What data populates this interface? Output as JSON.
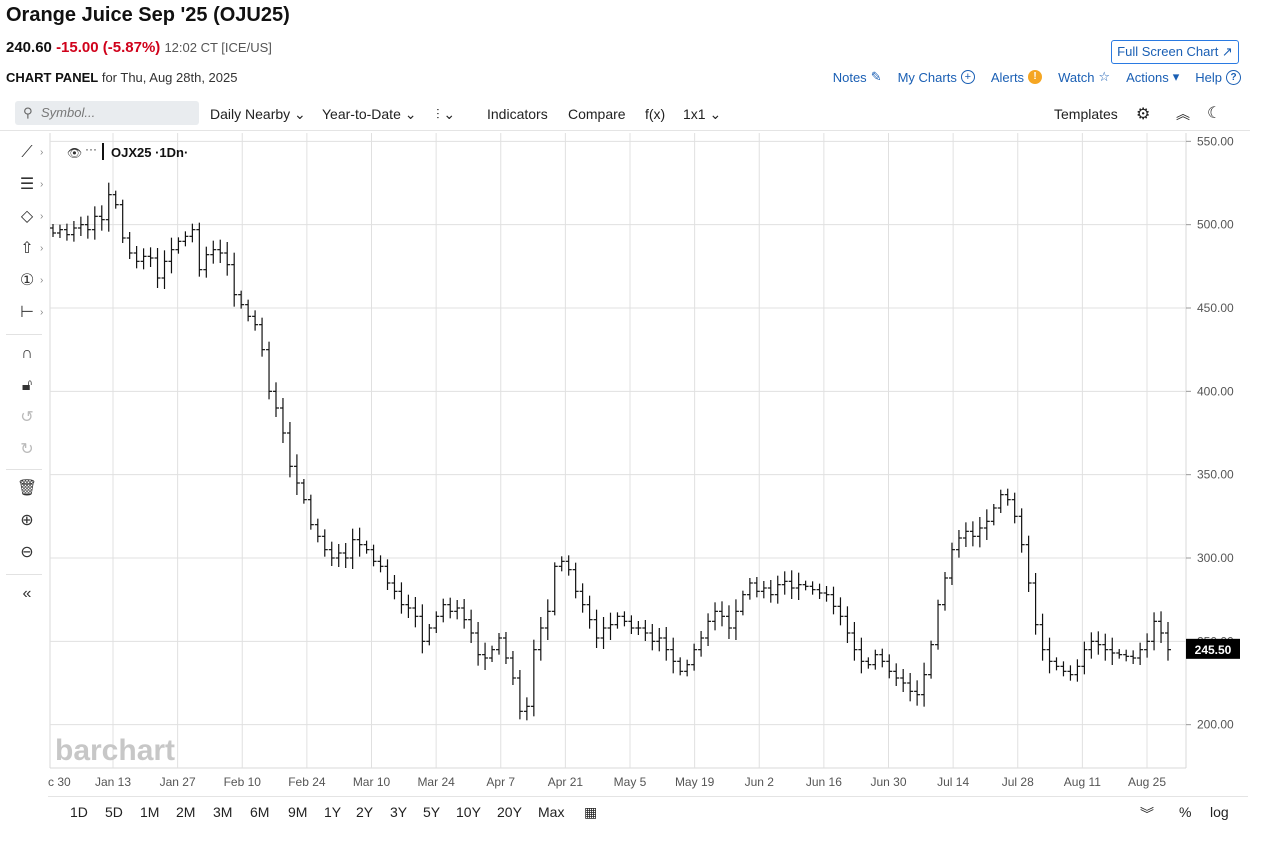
{
  "header": {
    "title": "Orange Juice Sep '25 (OJU25)",
    "last": "240.60",
    "change": "-15.00 (-5.87%)",
    "time": "12:02 CT [ICE/US]",
    "panel_label": "CHART PANEL",
    "panel_date": "for Thu, Aug 28th, 2025",
    "fullscreen_label": "Full Screen Chart ↗"
  },
  "links": {
    "notes": "Notes",
    "mycharts": "My Charts",
    "alerts": "Alerts",
    "watch": "Watch",
    "actions": "Actions",
    "help": "Help"
  },
  "toolbar": {
    "symbol_placeholder": "Symbol...",
    "interval": "Daily Nearby",
    "range": "Year-to-Date",
    "bar_type_icon": "bar-type-icon",
    "indicators": "Indicators",
    "compare": "Compare",
    "fx": "f(x)",
    "layout": "1x1",
    "templates": "Templates"
  },
  "side_tools": [
    "line-tool-icon",
    "fib-tool-icon",
    "shape-tool-icon",
    "arrow-tool-icon",
    "annotation-tool-icon",
    "measure-tool-icon",
    "magnet-icon",
    "lock-icon",
    "undo-icon",
    "redo-icon",
    "trash-icon",
    "zoom-in-icon",
    "zoom-out-icon",
    "collapse-icon"
  ],
  "ranges": [
    "1D",
    "5D",
    "1M",
    "2M",
    "3M",
    "6M",
    "9M",
    "1Y",
    "2Y",
    "3Y",
    "5Y",
    "10Y",
    "20Y",
    "Max"
  ],
  "bottom_right": {
    "percent": "%",
    "log": "log"
  },
  "watermark": "barchart",
  "colors": {
    "change": "#d0021b",
    "link": "#1a5fb4",
    "grid": "#e0e0e0",
    "bars": "#111111",
    "price_tag": "#000000"
  },
  "chart_data": {
    "type": "ohlc-bar",
    "legend": "OJX25 ·1Dn·",
    "y_ticks": [
      "550.00",
      "500.00",
      "450.00",
      "400.00",
      "350.00",
      "300.00",
      "250.00",
      "200.00"
    ],
    "ylim": [
      174,
      555
    ],
    "current_price_label": "245.50",
    "current_price": 245.5,
    "x_ticks": [
      "c 30",
      "Jan 13",
      "Jan 27",
      "Feb 10",
      "Feb 24",
      "Mar 10",
      "Mar 24",
      "Apr 7",
      "Apr 21",
      "May 5",
      "May 19",
      "Jun 2",
      "Jun 16",
      "Jun 30",
      "Jul 14",
      "Jul 28",
      "Aug 11",
      "Aug 25"
    ],
    "closes": [
      495,
      497,
      494,
      498,
      500,
      497,
      505,
      503,
      518,
      512,
      492,
      483,
      478,
      481,
      480,
      468,
      478,
      485,
      490,
      493,
      497,
      473,
      482,
      485,
      483,
      476,
      458,
      452,
      445,
      440,
      425,
      400,
      390,
      375,
      355,
      345,
      335,
      320,
      313,
      305,
      300,
      303,
      300,
      311,
      308,
      305,
      298,
      295,
      285,
      280,
      272,
      270,
      265,
      250,
      258,
      265,
      272,
      268,
      270,
      263,
      255,
      242,
      240,
      245,
      252,
      240,
      228,
      208,
      211,
      245,
      258,
      268,
      295,
      298,
      293,
      280,
      272,
      263,
      252,
      258,
      260,
      265,
      262,
      258,
      258,
      255,
      250,
      252,
      245,
      238,
      232,
      236,
      245,
      252,
      262,
      268,
      265,
      258,
      268,
      278,
      285,
      280,
      282,
      278,
      284,
      286,
      282,
      284,
      283,
      281,
      279,
      278,
      271,
      265,
      255,
      245,
      238,
      236,
      242,
      238,
      232,
      228,
      225,
      220,
      218,
      230,
      248,
      272,
      288,
      305,
      312,
      316,
      313,
      318,
      322,
      330,
      338,
      335,
      325,
      308,
      285,
      260,
      245,
      238,
      235,
      232,
      230,
      235,
      245,
      250,
      248,
      245,
      243,
      242,
      241,
      240,
      245,
      250,
      262,
      255,
      245
    ]
  }
}
